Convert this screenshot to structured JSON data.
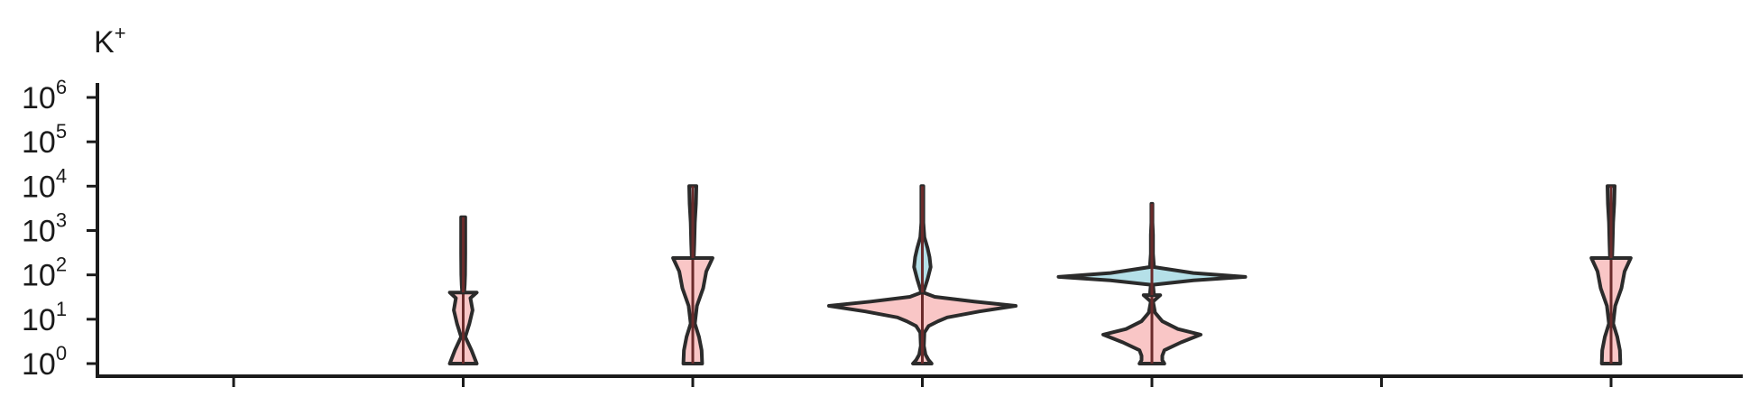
{
  "chart_data": {
    "type": "violin",
    "title": "K",
    "title_sup": "+",
    "yscale": "log",
    "ylim": [
      1,
      1000000
    ],
    "yticks": [
      {
        "base": "10",
        "exp": "0"
      },
      {
        "base": "10",
        "exp": "1"
      },
      {
        "base": "10",
        "exp": "2"
      },
      {
        "base": "10",
        "exp": "3"
      },
      {
        "base": "10",
        "exp": "4"
      },
      {
        "base": "10",
        "exp": "5"
      },
      {
        "base": "10",
        "exp": "6"
      }
    ],
    "categories": [
      "",
      "",
      "",
      "",
      "",
      "",
      "",
      ""
    ],
    "colors": {
      "lower": "#f9c6c6",
      "upper": "#b5e0e8",
      "outline": "#2b2b2b",
      "median": "#6b2b2b"
    },
    "groups": [
      {
        "index": 0,
        "split": null,
        "lower": [],
        "upper": []
      },
      {
        "index": 1,
        "split": 40,
        "lower": [
          [
            1,
            0.13
          ],
          [
            2,
            0.08
          ],
          [
            4,
            0.02
          ],
          [
            8,
            0.06
          ],
          [
            16,
            0.09
          ],
          [
            30,
            0.07
          ],
          [
            40,
            0.13
          ]
        ],
        "upper": [
          [
            40,
            0.01
          ],
          [
            60,
            0.015
          ],
          [
            100,
            0.018
          ],
          [
            300,
            0.02
          ],
          [
            1000,
            0.02
          ],
          [
            2000,
            0.02
          ]
        ]
      },
      {
        "index": 2,
        "split": 240,
        "lower": [
          [
            1,
            0.09
          ],
          [
            2,
            0.085
          ],
          [
            4,
            0.06
          ],
          [
            8,
            0.02
          ],
          [
            20,
            0.04
          ],
          [
            50,
            0.1
          ],
          [
            120,
            0.13
          ],
          [
            240,
            0.19
          ]
        ],
        "upper": [
          [
            240,
            0.01
          ],
          [
            500,
            0.015
          ],
          [
            1500,
            0.02
          ],
          [
            4000,
            0.03
          ],
          [
            10000,
            0.035
          ]
        ]
      },
      {
        "index": 3,
        "split": 40,
        "lower": [
          [
            1,
            0.09
          ],
          [
            1.2,
            0.06
          ],
          [
            1.6,
            0.03
          ],
          [
            2.5,
            0.015
          ],
          [
            5,
            0.02
          ],
          [
            7,
            0.06
          ],
          [
            9,
            0.15
          ],
          [
            11,
            0.24
          ],
          [
            15,
            0.55
          ],
          [
            20,
            0.9
          ],
          [
            25,
            0.5
          ],
          [
            32,
            0.12
          ],
          [
            40,
            0.01
          ]
        ],
        "upper": [
          [
            40,
            0.01
          ],
          [
            80,
            0.05
          ],
          [
            150,
            0.08
          ],
          [
            250,
            0.07
          ],
          [
            400,
            0.05
          ],
          [
            700,
            0.02
          ],
          [
            1500,
            0.01
          ],
          [
            4000,
            0.01
          ],
          [
            10000,
            0.01
          ]
        ]
      },
      {
        "index": 4,
        "split": 35,
        "lower": [
          [
            1,
            0.12
          ],
          [
            1.2,
            0.1
          ],
          [
            1.5,
            0.1
          ],
          [
            2,
            0.12
          ],
          [
            3,
            0.28
          ],
          [
            4.5,
            0.47
          ],
          [
            6,
            0.25
          ],
          [
            9,
            0.1
          ],
          [
            14,
            0.03
          ],
          [
            25,
            0.01
          ],
          [
            35,
            0.08
          ]
        ],
        "upper": [
          [
            35,
            0.02
          ],
          [
            60,
            0.01
          ],
          [
            75,
            0.4
          ],
          [
            90,
            0.9
          ],
          [
            110,
            0.4
          ],
          [
            150,
            0.02
          ],
          [
            300,
            0.01
          ],
          [
            800,
            0.01
          ],
          [
            1500,
            0.005
          ],
          [
            4000,
            0.005
          ]
        ]
      },
      {
        "index": 5,
        "split": null,
        "lower": [],
        "upper": []
      },
      {
        "index": 6,
        "split": 240,
        "lower": [
          [
            1,
            0.09
          ],
          [
            2,
            0.085
          ],
          [
            4,
            0.06
          ],
          [
            8,
            0.02
          ],
          [
            20,
            0.04
          ],
          [
            50,
            0.1
          ],
          [
            120,
            0.13
          ],
          [
            240,
            0.19
          ]
        ],
        "upper": [
          [
            240,
            0.01
          ],
          [
            500,
            0.015
          ],
          [
            1500,
            0.02
          ],
          [
            4000,
            0.03
          ],
          [
            10000,
            0.035
          ]
        ]
      }
    ]
  }
}
